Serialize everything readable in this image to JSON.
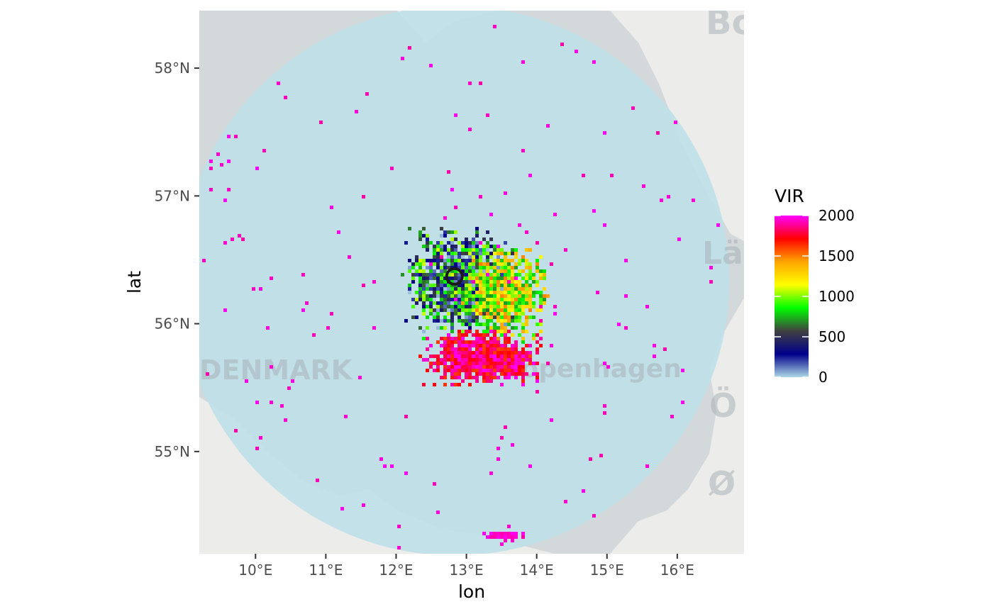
{
  "map": {
    "basemap_labels": [
      "DENMARK",
      "Copenhagen",
      "Bo",
      "Lä",
      "Ö",
      "Ø"
    ],
    "colors": {
      "land": "#ececea",
      "sea": "#d3d8db",
      "radar_disc": "#bfe0e8",
      "radar_site": "#1a1a1a"
    }
  },
  "axes": {
    "x_title": "lon",
    "y_title": "lat",
    "x_ticks": [
      {
        "value": 10,
        "label": "10°E"
      },
      {
        "value": 11,
        "label": "11°E"
      },
      {
        "value": 12,
        "label": "12°E"
      },
      {
        "value": 13,
        "label": "13°E"
      },
      {
        "value": 14,
        "label": "14°E"
      },
      {
        "value": 15,
        "label": "15°E"
      },
      {
        "value": 16,
        "label": "16°E"
      }
    ],
    "y_ticks": [
      {
        "value": 55,
        "label": "55°N"
      },
      {
        "value": 56,
        "label": "56°N"
      },
      {
        "value": 57,
        "label": "57°N"
      },
      {
        "value": 58,
        "label": "58°N"
      }
    ],
    "xlim": [
      9.2,
      16.95
    ],
    "ylim": [
      54.2,
      58.45
    ]
  },
  "legend": {
    "title": "VIR",
    "labels": [
      "2000",
      "1500",
      "1000",
      "500",
      "0"
    ],
    "values": [
      2000,
      1500,
      1000,
      500,
      0
    ],
    "gradient_colors": [
      "#ff00ff",
      "#ff0000",
      "#ffa500",
      "#ffff00",
      "#00ff00",
      "#404040",
      "#00008b",
      "#add8e6"
    ]
  },
  "chart_data": {
    "type": "heatmap",
    "title": "",
    "xlabel": "lon",
    "ylabel": "lat",
    "color_variable": "VIR",
    "color_range": [
      0,
      2000
    ],
    "radar_site": {
      "lon": 12.83,
      "lat": 56.37
    },
    "coverage_radius_deg_lat": 2.15,
    "clusters": [
      {
        "name": "core",
        "lon": 12.95,
        "lat": 56.35,
        "vir_range": [
          0,
          1100
        ]
      },
      {
        "name": "east",
        "lon": 13.55,
        "lat": 56.25,
        "vir_range": [
          700,
          1500
        ]
      },
      {
        "name": "south",
        "lon": 13.2,
        "lat": 55.75,
        "vir_range": [
          1600,
          2000
        ]
      },
      {
        "name": "south-edge",
        "lon": 13.5,
        "lat": 54.35,
        "vir_range": [
          1900,
          2000
        ]
      }
    ]
  }
}
